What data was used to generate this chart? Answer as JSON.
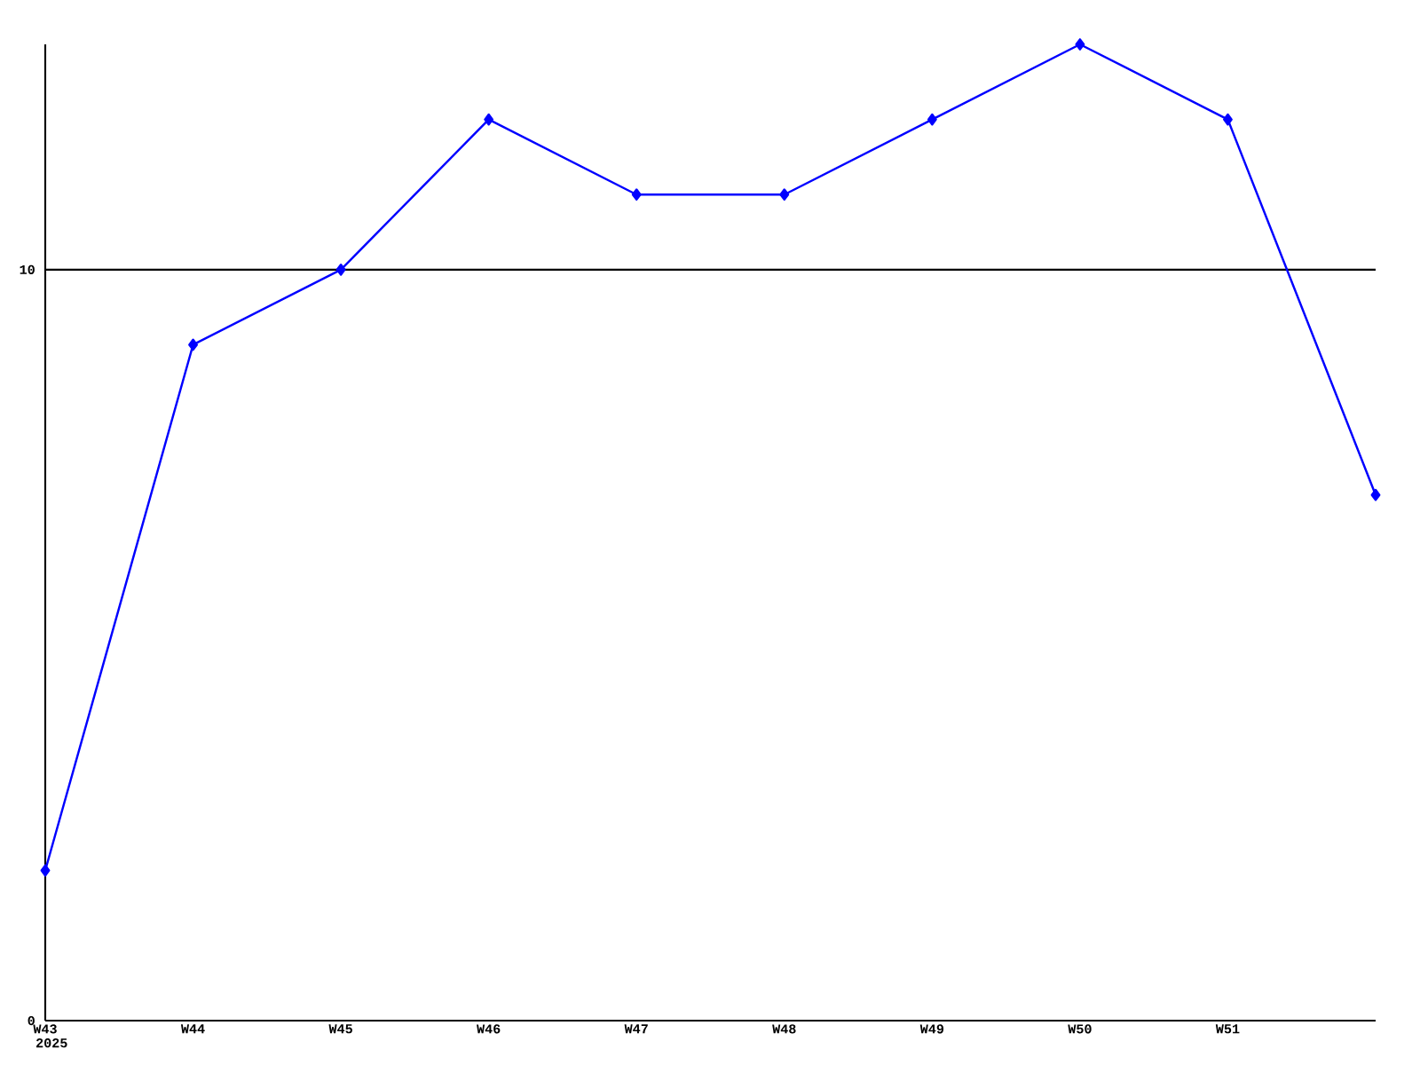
{
  "chart_data": {
    "type": "line",
    "categories": [
      "W43",
      "W44",
      "W45",
      "W46",
      "W47",
      "W48",
      "W49",
      "W50",
      "W51",
      null
    ],
    "series": [
      {
        "color": "#0000ff",
        "values": [
          2,
          9,
          10,
          12,
          11,
          11,
          12,
          13,
          12,
          7
        ]
      }
    ],
    "ylim": [
      0,
      13
    ],
    "yticks": [
      0,
      10
    ],
    "grid": "y",
    "marker": "diamond",
    "line_style": "solid",
    "annotations": [
      "2025"
    ]
  }
}
